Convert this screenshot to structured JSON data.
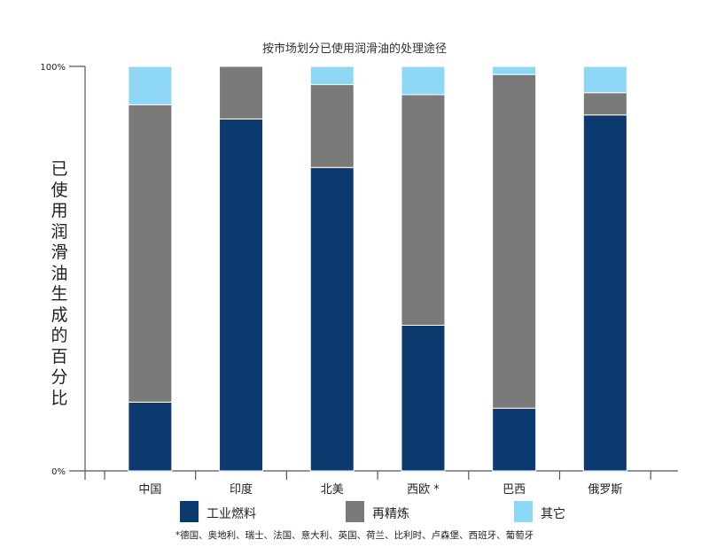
{
  "chart_data": {
    "type": "bar",
    "stacked": true,
    "title": "按市场划分已使用润滑油的处理途径",
    "ylabel": "已使用润滑油生成的百分比",
    "xlabel": "",
    "ylim": [
      0,
      100
    ],
    "yticks": [
      "0%",
      "100%"
    ],
    "categories": [
      "中国",
      "印度",
      "北美",
      "西欧 *",
      "巴西",
      "俄罗斯"
    ],
    "series": [
      {
        "name": "工业燃料",
        "color": "#0d3a6e",
        "values": [
          17,
          87,
          75,
          36,
          15.5,
          88
        ]
      },
      {
        "name": "再精炼",
        "color": "#7a7a7a",
        "values": [
          73.5,
          13,
          20.5,
          57,
          82.5,
          5.5
        ]
      },
      {
        "name": "其它",
        "color": "#8fd8f5",
        "values": [
          9.5,
          0,
          4.5,
          7,
          2,
          6.5
        ]
      }
    ],
    "grid": false,
    "legend": "bottom",
    "footnote": "*德国、奥地利、瑞士、法国、意大利、英国、荷兰、比利时、卢森堡、西班牙、葡萄牙"
  }
}
